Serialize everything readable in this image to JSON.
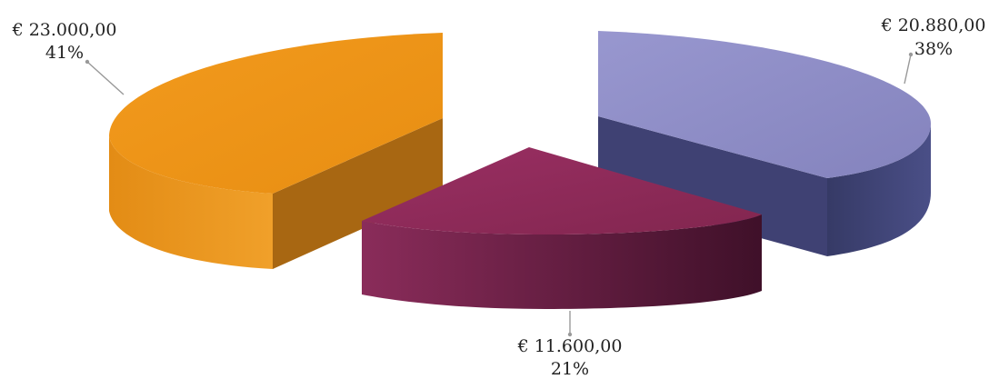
{
  "chart_data": {
    "type": "pie",
    "style": "3d-exploded",
    "legend": "none",
    "slices": [
      {
        "label": "€ 20.880,00",
        "value": 20880,
        "percent_label": "38%",
        "color": "#8d8cc4",
        "side_color": "#3f4173"
      },
      {
        "label": "€ 11.600,00",
        "value": 11600,
        "percent_label": "21%",
        "color": "#8f2b5a",
        "side_color": "#5e1a3e"
      },
      {
        "label": "€ 23.000,00",
        "value": 23000,
        "percent_label": "41%",
        "color": "#ee9517",
        "side_color": "#a86712"
      }
    ]
  }
}
